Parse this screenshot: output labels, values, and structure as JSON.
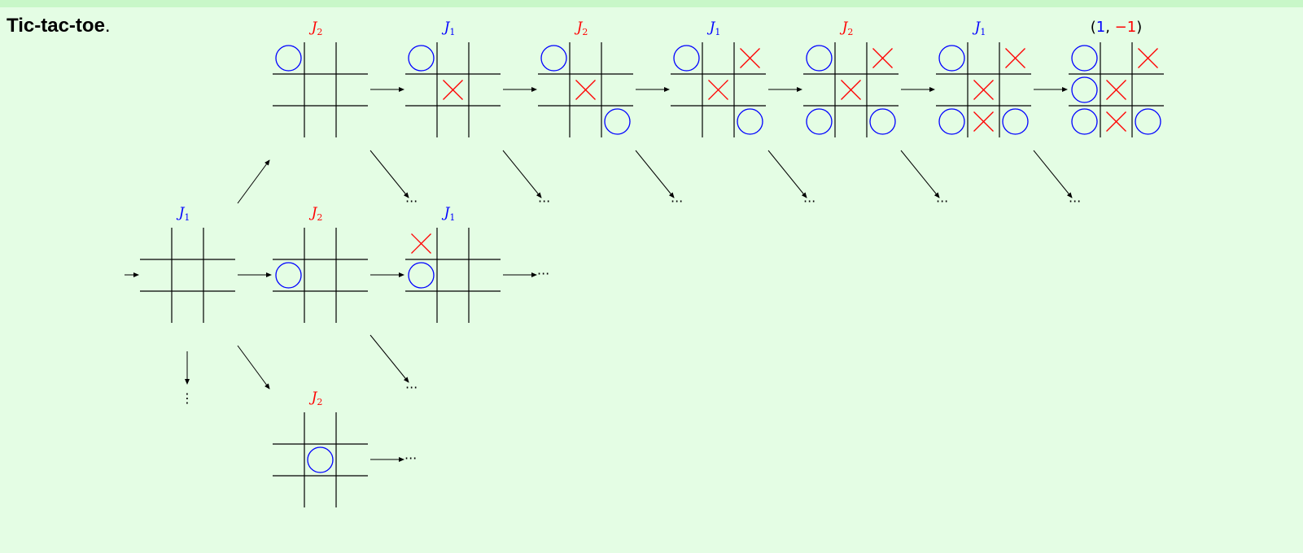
{
  "title": {
    "bold": "Tic-tac-toe",
    "suffix": "."
  },
  "colors": {
    "background": "#e4fde4",
    "p1": "#0000ff",
    "p2": "#ff0000",
    "grid": "#000000"
  },
  "players": {
    "p1": {
      "letter": "J",
      "sub": "1"
    },
    "p2": {
      "letter": "J",
      "sub": "2"
    }
  },
  "ellipsis": "···",
  "vellipsis": "⋮",
  "payoff": {
    "open": "(",
    "p1": "1",
    "comma": ", ",
    "p2": "−1",
    "close": ")"
  },
  "boards": [
    {
      "id": "root",
      "player": "p1",
      "cells": [
        "",
        "",
        "",
        "",
        "",
        "",
        "",
        "",
        ""
      ]
    },
    {
      "id": "top-1",
      "player": "p2",
      "cells": [
        "O",
        "",
        "",
        "",
        "",
        "",
        "",
        "",
        ""
      ]
    },
    {
      "id": "top-2",
      "player": "p1",
      "cells": [
        "O",
        "",
        "",
        "",
        "X",
        "",
        "",
        "",
        ""
      ]
    },
    {
      "id": "top-3",
      "player": "p2",
      "cells": [
        "O",
        "",
        "",
        "",
        "X",
        "",
        "",
        "",
        "O"
      ]
    },
    {
      "id": "top-4",
      "player": "p1",
      "cells": [
        "O",
        "",
        "X",
        "",
        "X",
        "",
        "",
        "",
        "O"
      ]
    },
    {
      "id": "top-5",
      "player": "p2",
      "cells": [
        "O",
        "",
        "X",
        "",
        "X",
        "",
        "O",
        "",
        "O"
      ]
    },
    {
      "id": "top-6",
      "player": "p1",
      "cells": [
        "O",
        "",
        "X",
        "",
        "X",
        "",
        "O",
        "X",
        "O"
      ]
    },
    {
      "id": "terminal",
      "player": "payoff",
      "cells": [
        "O",
        "",
        "X",
        "O",
        "X",
        "",
        "O",
        "X",
        "O"
      ]
    },
    {
      "id": "mid-1",
      "player": "p2",
      "cells": [
        "",
        "",
        "",
        "O",
        "",
        "",
        "",
        "",
        ""
      ]
    },
    {
      "id": "mid-2",
      "player": "p1",
      "cells": [
        "X",
        "",
        "",
        "O",
        "",
        "",
        "",
        "",
        ""
      ]
    },
    {
      "id": "low-1",
      "player": "p2",
      "cells": [
        "",
        "",
        "",
        "",
        "O",
        "",
        "",
        "",
        ""
      ]
    }
  ]
}
